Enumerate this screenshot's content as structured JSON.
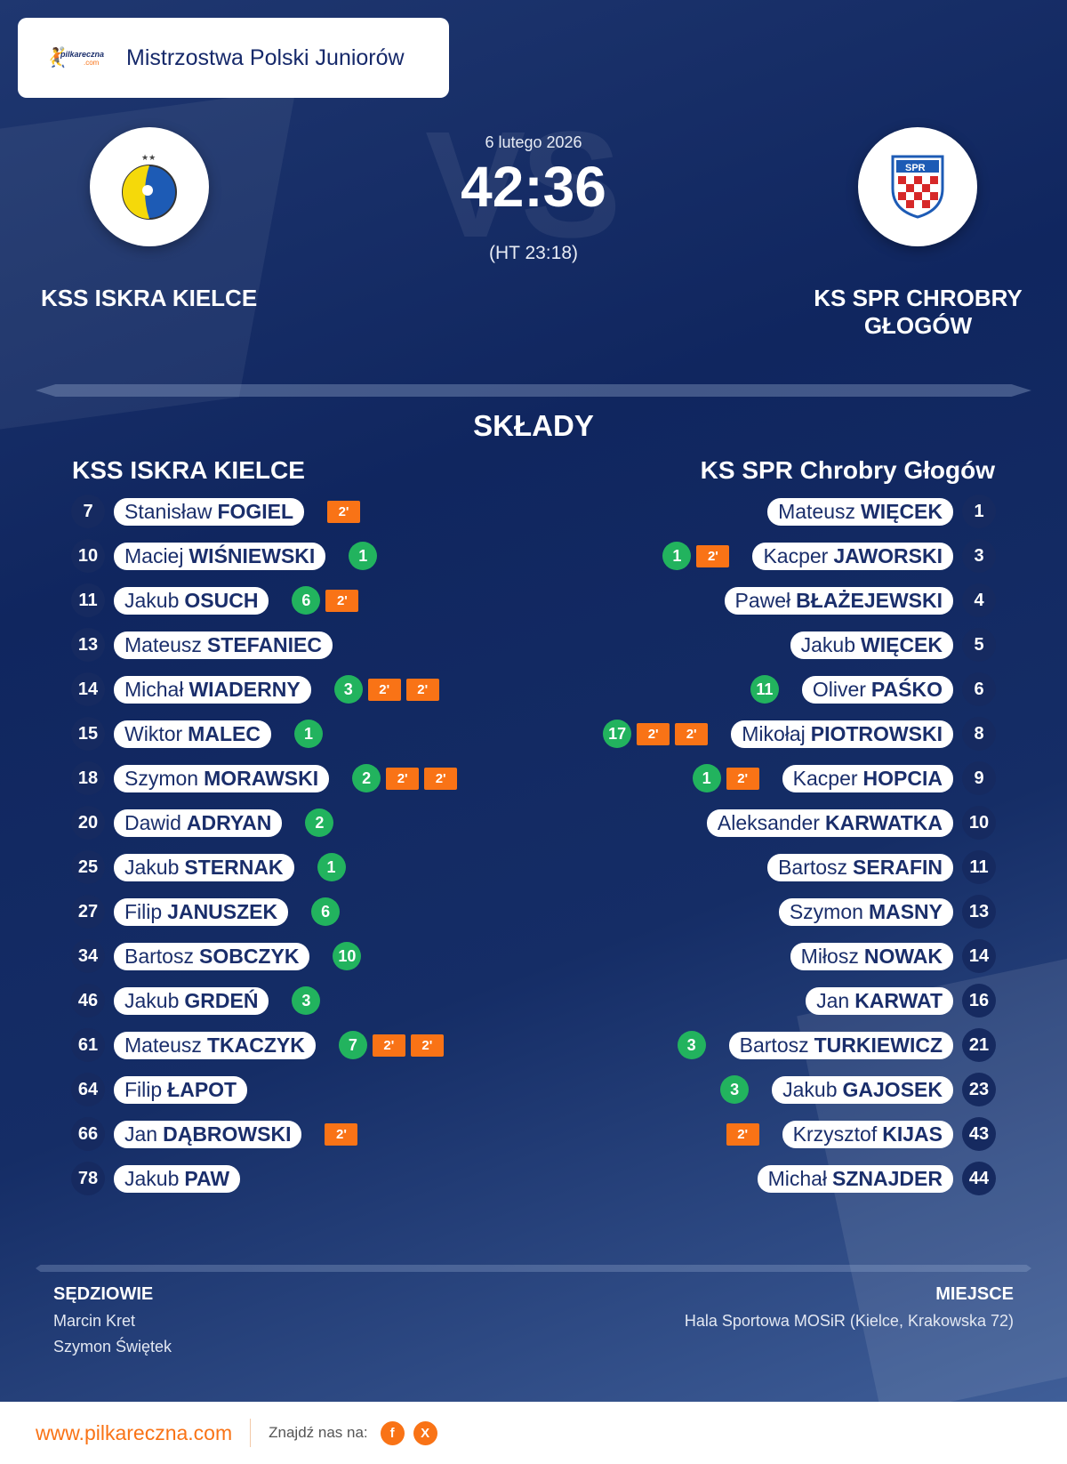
{
  "header": {
    "competition": "Mistrzostwa Polski Juniorów",
    "logo_text": "pilkareczna",
    "logo_sub": ".com"
  },
  "match": {
    "date": "6 lutego 2026",
    "score": "42:36",
    "halftime": "(HT 23:18)",
    "vs": "VS"
  },
  "home": {
    "name": "KSS ISKRA KIELCE",
    "lineup_title": "KSS ISKRA KIELCE",
    "colors": {
      "primary": "#f5d90a",
      "secondary": "#1d5bb5"
    }
  },
  "away": {
    "name": "KS SPR CHROBRY GŁOGÓW",
    "lineup_title": "KS SPR Chrobry Głogów",
    "crest_text": "SPR",
    "colors": {
      "primary": "#d62828",
      "secondary": "#1d5bb5"
    }
  },
  "section_title": "SKŁADY",
  "penalty_label": "2'",
  "home_players": [
    {
      "no": "7",
      "first": "Stanisław",
      "last": "FOGIEL",
      "goals": null,
      "pens": 1
    },
    {
      "no": "10",
      "first": "Maciej",
      "last": "WIŚNIEWSKI",
      "goals": "1",
      "pens": 0
    },
    {
      "no": "11",
      "first": "Jakub",
      "last": "OSUCH",
      "goals": "6",
      "pens": 1
    },
    {
      "no": "13",
      "first": "Mateusz",
      "last": "STEFANIEC",
      "goals": null,
      "pens": 0
    },
    {
      "no": "14",
      "first": "Michał",
      "last": "WIADERNY",
      "goals": "3",
      "pens": 2
    },
    {
      "no": "15",
      "first": "Wiktor",
      "last": "MALEC",
      "goals": "1",
      "pens": 0
    },
    {
      "no": "18",
      "first": "Szymon",
      "last": "MORAWSKI",
      "goals": "2",
      "pens": 2
    },
    {
      "no": "20",
      "first": "Dawid",
      "last": "ADRYAN",
      "goals": "2",
      "pens": 0
    },
    {
      "no": "25",
      "first": "Jakub",
      "last": "STERNAK",
      "goals": "1",
      "pens": 0
    },
    {
      "no": "27",
      "first": "Filip",
      "last": "JANUSZEK",
      "goals": "6",
      "pens": 0
    },
    {
      "no": "34",
      "first": "Bartosz",
      "last": "SOBCZYK",
      "goals": "10",
      "pens": 0
    },
    {
      "no": "46",
      "first": "Jakub",
      "last": "GRDEŃ",
      "goals": "3",
      "pens": 0
    },
    {
      "no": "61",
      "first": "Mateusz",
      "last": "TKACZYK",
      "goals": "7",
      "pens": 2
    },
    {
      "no": "64",
      "first": "Filip",
      "last": "ŁAPOT",
      "goals": null,
      "pens": 0
    },
    {
      "no": "66",
      "first": "Jan",
      "last": "DĄBROWSKI",
      "goals": null,
      "pens": 1
    },
    {
      "no": "78",
      "first": "Jakub",
      "last": "PAW",
      "goals": null,
      "pens": 0
    }
  ],
  "away_players": [
    {
      "no": "1",
      "first": "Mateusz",
      "last": "WIĘCEK",
      "goals": null,
      "pens": 0
    },
    {
      "no": "3",
      "first": "Kacper",
      "last": "JAWORSKI",
      "goals": "1",
      "pens": 1
    },
    {
      "no": "4",
      "first": "Paweł",
      "last": "BŁAŻEJEWSKI",
      "goals": null,
      "pens": 0
    },
    {
      "no": "5",
      "first": "Jakub",
      "last": "WIĘCEK",
      "goals": null,
      "pens": 0
    },
    {
      "no": "6",
      "first": "Oliver",
      "last": "PAŚKO",
      "goals": "11",
      "pens": 0
    },
    {
      "no": "8",
      "first": "Mikołaj",
      "last": "PIOTROWSKI",
      "goals": "17",
      "pens": 2
    },
    {
      "no": "9",
      "first": "Kacper",
      "last": "HOPCIA",
      "goals": "1",
      "pens": 1
    },
    {
      "no": "10",
      "first": "Aleksander",
      "last": "KARWATKA",
      "goals": null,
      "pens": 0
    },
    {
      "no": "11",
      "first": "Bartosz",
      "last": "SERAFIN",
      "goals": null,
      "pens": 0
    },
    {
      "no": "13",
      "first": "Szymon",
      "last": "MASNY",
      "goals": null,
      "pens": 0
    },
    {
      "no": "14",
      "first": "Miłosz",
      "last": "NOWAK",
      "goals": null,
      "pens": 0
    },
    {
      "no": "16",
      "first": "Jan",
      "last": "KARWAT",
      "goals": null,
      "pens": 0
    },
    {
      "no": "21",
      "first": "Bartosz",
      "last": "TURKIEWICZ",
      "goals": "3",
      "pens": 0
    },
    {
      "no": "23",
      "first": "Jakub",
      "last": "GAJOSEK",
      "goals": "3",
      "pens": 0
    },
    {
      "no": "43",
      "first": "Krzysztof",
      "last": "KIJAS",
      "goals": null,
      "pens": 1
    },
    {
      "no": "44",
      "first": "Michał",
      "last": "SZNAJDER",
      "goals": null,
      "pens": 0
    }
  ],
  "officials": {
    "title": "SĘDZIOWIE",
    "referees": [
      "Marcin Kret",
      "Szymon Świętek"
    ]
  },
  "venue": {
    "title": "MIEJSCE",
    "name": "Hala Sportowa MOSiR (Kielce, Krakowska 72)"
  },
  "footer": {
    "url": "www.pilkareczna.com",
    "find_us": "Znajdź nas na:",
    "facebook_label": "f",
    "x_label": "X"
  },
  "colors": {
    "accent": "#f97316",
    "goal": "#22b35e",
    "navy": "#162a60"
  }
}
